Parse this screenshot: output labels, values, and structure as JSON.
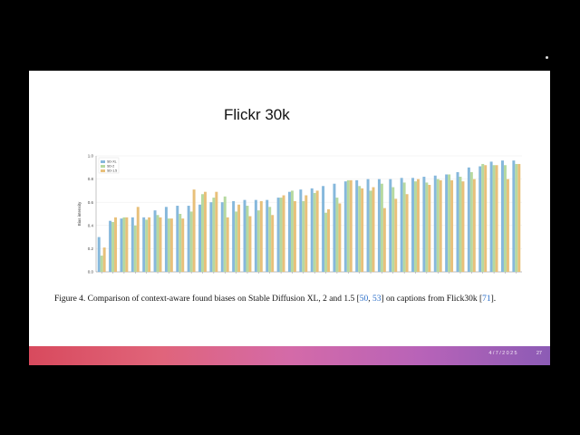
{
  "slide": {
    "title": "Flickr 30k",
    "caption_prefix": "Figure 4. Comparison of context-aware found biases on Stable Diffusion XL, 2 and 1.5 [",
    "cite_a": "50",
    "cite_sep": ", ",
    "cite_b": "53",
    "caption_mid": "] on captions from Flick30k [",
    "cite_c": "71",
    "caption_end": "].",
    "footer_date": "4/7/2025",
    "page_number": "27"
  },
  "chart_data": {
    "type": "bar",
    "ylabel": "Bias intensity",
    "ylim": [
      0,
      1.0
    ],
    "yticks": [
      "0.0",
      "0.2",
      "0.4",
      "0.6",
      "0.8",
      "1.0"
    ],
    "legend_position": "top-left",
    "colors": [
      "#86b8dc",
      "#b6d9a0",
      "#e8c07a"
    ],
    "series": [
      {
        "name": "SD-XL",
        "values": [
          0.3,
          0.44,
          0.46,
          0.47,
          0.47,
          0.53,
          0.56,
          0.57,
          0.57,
          0.58,
          0.6,
          0.6,
          0.61,
          0.62,
          0.62,
          0.62,
          0.64,
          0.69,
          0.71,
          0.72,
          0.74,
          0.76,
          0.78,
          0.79,
          0.8,
          0.8,
          0.8,
          0.81,
          0.81,
          0.82,
          0.83,
          0.84,
          0.86,
          0.9,
          0.91,
          0.95,
          0.96,
          0.96
        ]
      },
      {
        "name": "SD-2",
        "values": [
          0.14,
          0.43,
          0.47,
          0.4,
          0.45,
          0.49,
          0.46,
          0.5,
          0.52,
          0.67,
          0.64,
          0.65,
          0.52,
          0.57,
          0.53,
          0.56,
          0.64,
          0.7,
          0.61,
          0.68,
          0.51,
          0.64,
          0.79,
          0.74,
          0.7,
          0.76,
          0.73,
          0.77,
          0.78,
          0.77,
          0.8,
          0.84,
          0.82,
          0.86,
          0.93,
          0.92,
          0.92,
          0.93
        ]
      },
      {
        "name": "SD-1.5",
        "values": [
          0.21,
          0.47,
          0.47,
          0.56,
          0.47,
          0.47,
          0.46,
          0.46,
          0.71,
          0.69,
          0.69,
          0.47,
          0.58,
          0.48,
          0.61,
          0.49,
          0.66,
          0.61,
          0.66,
          0.7,
          0.54,
          0.59,
          0.79,
          0.72,
          0.73,
          0.55,
          0.63,
          0.67,
          0.8,
          0.75,
          0.79,
          0.79,
          0.78,
          0.8,
          0.92,
          0.92,
          0.8,
          0.93
        ]
      }
    ]
  }
}
